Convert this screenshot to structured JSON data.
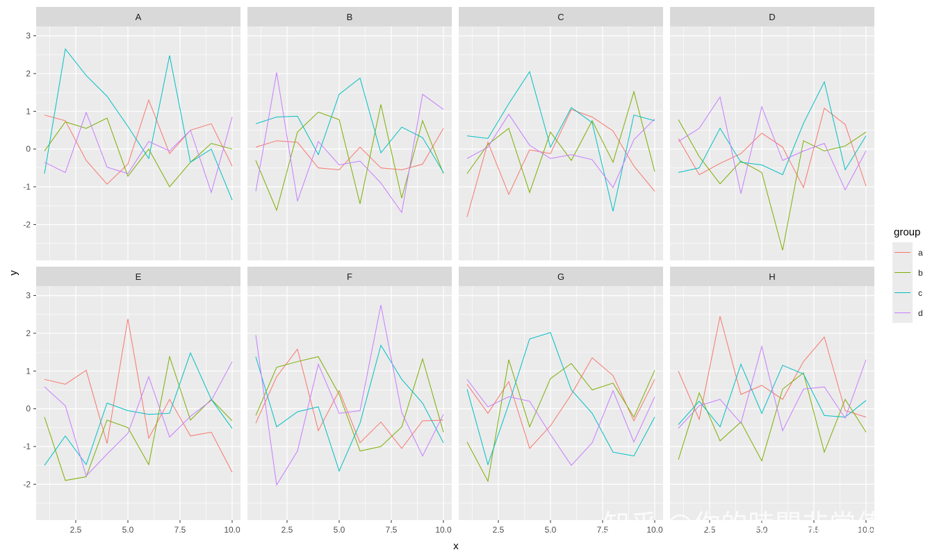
{
  "chart_data": {
    "type": "line",
    "xlabel": "x",
    "ylabel": "y",
    "xlim": [
      0.6,
      10.4
    ],
    "ylim": [
      -2.95,
      3.25
    ],
    "x_ticks": [
      2.5,
      5.0,
      7.5,
      10.0
    ],
    "x_tick_labels": [
      "2.5",
      "5.0",
      "7.5",
      "10.0"
    ],
    "y_ticks": [
      -2,
      -1,
      0,
      1,
      2,
      3
    ],
    "y_tick_labels": [
      "-2",
      "-1",
      "0",
      "1",
      "2",
      "3"
    ],
    "grid": true,
    "legend": {
      "title": "group",
      "position": "right"
    },
    "x": [
      1,
      2,
      3,
      4,
      5,
      6,
      7,
      8,
      9,
      10
    ],
    "series_colors": {
      "a": "#F8766D",
      "b": "#7CAE00",
      "c": "#00BFC4",
      "d": "#C77CFF"
    },
    "series_order": [
      "a",
      "b",
      "c",
      "d"
    ],
    "panels": [
      {
        "label": "A",
        "series": [
          {
            "name": "a",
            "values": [
              0.9,
              0.75,
              -0.3,
              -0.93,
              -0.4,
              1.3,
              -0.12,
              0.5,
              0.67,
              -0.45
            ]
          },
          {
            "name": "b",
            "values": [
              -0.05,
              0.72,
              0.55,
              0.82,
              -0.72,
              0.0,
              -1.0,
              -0.35,
              0.15,
              0.0
            ]
          },
          {
            "name": "c",
            "values": [
              -0.65,
              2.65,
              1.95,
              1.4,
              0.6,
              -0.25,
              2.48,
              -0.35,
              0.0,
              -1.35
            ]
          },
          {
            "name": "d",
            "values": [
              -0.35,
              -0.62,
              0.97,
              -0.48,
              -0.65,
              0.2,
              -0.05,
              0.5,
              -1.15,
              0.85
            ]
          }
        ]
      },
      {
        "label": "B",
        "series": [
          {
            "name": "a",
            "values": [
              0.05,
              0.22,
              0.18,
              -0.5,
              -0.55,
              0.05,
              -0.5,
              -0.55,
              -0.4,
              0.55
            ]
          },
          {
            "name": "b",
            "values": [
              -0.3,
              -1.62,
              0.45,
              0.98,
              0.78,
              -1.45,
              1.18,
              -1.3,
              0.75,
              -0.65
            ]
          },
          {
            "name": "c",
            "values": [
              0.67,
              0.85,
              0.87,
              -0.15,
              1.45,
              1.88,
              -0.1,
              0.58,
              0.3,
              -0.62
            ]
          },
          {
            "name": "d",
            "values": [
              -1.12,
              2.03,
              -1.38,
              0.2,
              -0.42,
              -0.32,
              -0.9,
              -1.68,
              1.45,
              1.05
            ]
          }
        ]
      },
      {
        "label": "C",
        "series": [
          {
            "name": "a",
            "values": [
              -1.8,
              0.18,
              -1.2,
              -0.02,
              -0.12,
              1.05,
              0.85,
              0.48,
              -0.45,
              -1.12
            ]
          },
          {
            "name": "b",
            "values": [
              -0.65,
              0.12,
              0.55,
              -1.15,
              0.45,
              -0.3,
              0.75,
              -0.35,
              1.52,
              -0.6
            ]
          },
          {
            "name": "c",
            "values": [
              0.35,
              0.28,
              1.2,
              2.05,
              0.05,
              1.1,
              0.7,
              -1.65,
              0.9,
              0.75
            ]
          },
          {
            "name": "d",
            "values": [
              -0.25,
              0.05,
              0.92,
              0.1,
              -0.25,
              -0.15,
              -0.28,
              -1.02,
              0.25,
              0.8
            ]
          }
        ]
      },
      {
        "label": "D",
        "series": [
          {
            "name": "a",
            "values": [
              0.28,
              -0.68,
              -0.38,
              -0.12,
              0.42,
              0.05,
              -1.02,
              1.08,
              0.65,
              -0.98
            ]
          },
          {
            "name": "b",
            "values": [
              0.78,
              -0.2,
              -0.92,
              -0.32,
              -0.62,
              -2.68,
              0.22,
              -0.05,
              0.08,
              0.45
            ]
          },
          {
            "name": "c",
            "values": [
              -0.62,
              -0.5,
              0.55,
              -0.35,
              -0.42,
              -0.68,
              0.68,
              1.78,
              -0.55,
              0.35
            ]
          },
          {
            "name": "d",
            "values": [
              0.2,
              0.55,
              1.38,
              -1.18,
              1.12,
              -0.3,
              -0.05,
              0.15,
              -1.08,
              -0.05
            ]
          }
        ]
      },
      {
        "label": "E",
        "series": [
          {
            "name": "a",
            "values": [
              0.78,
              0.65,
              1.02,
              -0.92,
              2.38,
              -0.78,
              0.25,
              -0.72,
              -0.62,
              -1.68
            ]
          },
          {
            "name": "b",
            "values": [
              -0.22,
              -1.9,
              -1.8,
              -0.3,
              -0.5,
              -1.48,
              1.38,
              -0.3,
              0.25,
              -0.32
            ]
          },
          {
            "name": "c",
            "values": [
              -1.5,
              -0.72,
              -1.48,
              0.15,
              -0.05,
              -0.15,
              -0.12,
              1.48,
              0.25,
              -0.52
            ]
          },
          {
            "name": "d",
            "values": [
              0.58,
              0.08,
              -1.78,
              -1.2,
              -0.65,
              0.85,
              -0.75,
              -0.2,
              0.22,
              1.25
            ]
          }
        ]
      },
      {
        "label": "F",
        "series": [
          {
            "name": "a",
            "values": [
              -0.38,
              0.85,
              1.58,
              -0.58,
              0.48,
              -0.9,
              -0.35,
              -1.05,
              -0.32,
              -0.3
            ]
          },
          {
            "name": "b",
            "values": [
              -0.18,
              1.1,
              1.25,
              1.38,
              0.38,
              -1.12,
              -1.0,
              -0.48,
              1.32,
              -0.62
            ]
          },
          {
            "name": "c",
            "values": [
              1.38,
              -0.48,
              -0.08,
              0.05,
              -1.65,
              -0.38,
              1.68,
              0.78,
              0.15,
              -0.9
            ]
          },
          {
            "name": "d",
            "values": [
              1.95,
              -2.02,
              -1.12,
              1.18,
              -0.12,
              -0.05,
              2.75,
              -0.1,
              -1.25,
              -0.15
            ]
          }
        ]
      },
      {
        "label": "G",
        "series": [
          {
            "name": "a",
            "values": [
              0.65,
              -0.12,
              0.72,
              -1.05,
              -0.45,
              0.38,
              1.35,
              0.88,
              -0.32,
              0.78
            ]
          },
          {
            "name": "b",
            "values": [
              -0.88,
              -1.92,
              1.3,
              -0.48,
              0.8,
              1.2,
              0.5,
              0.68,
              -0.22,
              1.02
            ]
          },
          {
            "name": "c",
            "values": [
              0.52,
              -1.48,
              0.12,
              1.85,
              2.02,
              0.5,
              -0.12,
              -1.15,
              -1.25,
              -0.22
            ]
          },
          {
            "name": "d",
            "values": [
              0.78,
              0.05,
              0.32,
              0.2,
              -0.68,
              -1.5,
              -0.9,
              0.48,
              -0.88,
              0.32
            ]
          }
        ]
      },
      {
        "label": "H",
        "series": [
          {
            "name": "a",
            "values": [
              1.0,
              -0.28,
              2.45,
              0.38,
              0.62,
              0.25,
              1.25,
              1.9,
              -0.05,
              -0.22
            ]
          },
          {
            "name": "b",
            "values": [
              -1.35,
              0.42,
              -0.85,
              -0.35,
              -1.38,
              0.52,
              0.95,
              -1.15,
              0.25,
              -0.62
            ]
          },
          {
            "name": "c",
            "values": [
              -0.42,
              0.2,
              -0.48,
              1.18,
              -0.12,
              1.15,
              0.92,
              -0.18,
              -0.22,
              0.22
            ]
          },
          {
            "name": "d",
            "values": [
              -0.52,
              0.08,
              0.25,
              -0.38,
              1.65,
              -0.58,
              0.52,
              0.58,
              -0.25,
              1.3
            ]
          }
        ]
      }
    ]
  },
  "watermark": "知乎 @你的時間非常值錢"
}
